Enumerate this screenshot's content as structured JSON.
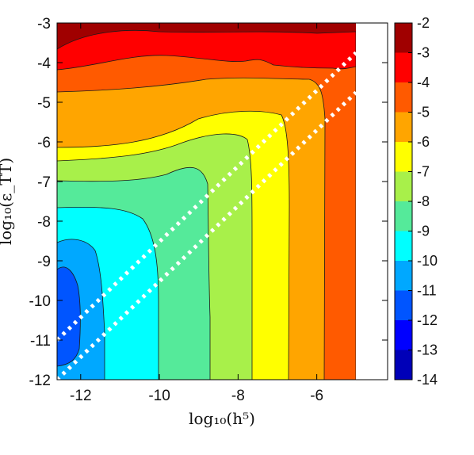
{
  "chart_data": {
    "type": "heatmap",
    "subtype": "filled-contour",
    "title": "",
    "xlabel": "log₁₀(h⁵)",
    "ylabel": "log₁₀(ε_TT)",
    "xlim": [
      -12.6,
      -4.2
    ],
    "ylim": [
      -12,
      -3
    ],
    "x_ticks": [
      "-12",
      "-10",
      "-8",
      "-6"
    ],
    "x_tick_values": [
      -12,
      -10,
      -8,
      -6
    ],
    "y_ticks": [
      "-3",
      "-4",
      "-5",
      "-6",
      "-7",
      "-8",
      "-9",
      "-10",
      "-11",
      "-12"
    ],
    "y_tick_values": [
      -3,
      -4,
      -5,
      -6,
      -7,
      -8,
      -9,
      -10,
      -11,
      -12
    ],
    "data_x_max": -5.0,
    "colorbar": {
      "levels": [
        "-2",
        "-3",
        "-4",
        "-5",
        "-6",
        "-7",
        "-8",
        "-9",
        "-10",
        "-11",
        "-12",
        "-13",
        "-14"
      ],
      "colors": [
        "#a00000",
        "#ff0000",
        "#ff5a00",
        "#ffa500",
        "#ffff00",
        "#a8f04a",
        "#55ea9a",
        "#00ffff",
        "#00a8ff",
        "#0055ff",
        "#0000ff",
        "#0000b8",
        "#000080"
      ]
    },
    "overlay_lines": [
      {
        "style": "white-dotted",
        "x": [
          -12.6,
          -5.0
        ],
        "y": [
          -11.0,
          -3.75
        ]
      },
      {
        "style": "white-dotted",
        "x": [
          -12.6,
          -5.0
        ],
        "y": [
          -12.0,
          -4.75
        ]
      }
    ]
  }
}
